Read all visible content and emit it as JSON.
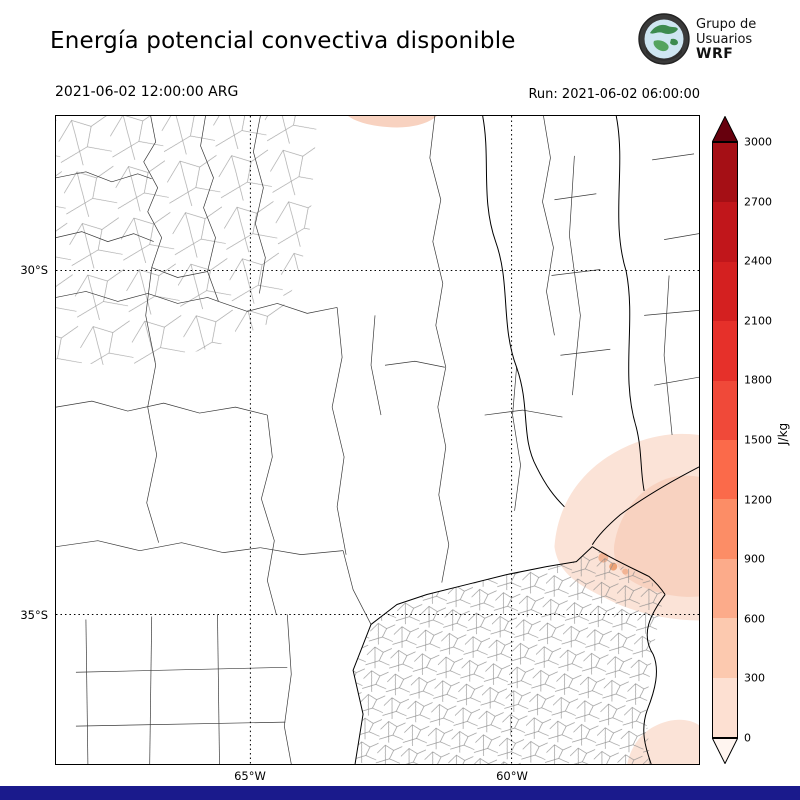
{
  "header": {
    "title": "Energía potencial convectiva disponible",
    "valid_time": "2021-06-02 12:00:00 ARG",
    "run_label": "Run: 2021-06-02 06:00:00"
  },
  "logo": {
    "line1": "Grupo de",
    "line2": "Usuarios",
    "line3": "WRF"
  },
  "map": {
    "lat_ticks": [
      "30°S",
      "35°S"
    ],
    "lon_ticks": [
      "65°W",
      "60°W"
    ]
  },
  "colorbar": {
    "unit": "J/kg",
    "ticks": [
      3000,
      2700,
      2400,
      2100,
      1800,
      1500,
      1200,
      900,
      600,
      300,
      0
    ],
    "segment_colors": [
      "#a50f15",
      "#c1161b",
      "#d42020",
      "#e6302a",
      "#f04939",
      "#fb6a4a",
      "#fc8d66",
      "#fcab8a",
      "#fcc9af",
      "#fde0d2"
    ],
    "over_color": "#67000d",
    "under_color": "#fff5f0"
  },
  "footer_bar_color": "#1a1a8c",
  "chart_data": {
    "type": "heatmap",
    "title": "Energía potencial convectiva disponible",
    "variable": "CAPE",
    "unit": "J/kg",
    "valid_time": "2021-06-02 12:00:00 ARG",
    "run": "2021-06-02 06:00:00",
    "colorbar_ticks": [
      0,
      300,
      600,
      900,
      1200,
      1500,
      1800,
      2100,
      2400,
      2700,
      3000
    ],
    "colorbar_range": [
      0,
      3000
    ],
    "lat_gridlines": [
      "30°S",
      "35°S"
    ],
    "lon_gridlines": [
      "65°W",
      "60°W"
    ],
    "regions": [
      {
        "area": "most of the mapped domain (central/northern Argentina)",
        "value_jkg": 0
      },
      {
        "area": "Río de la Plata, southern Entre Ríos and NE Buenos Aires",
        "value_jkg": "0-300"
      },
      {
        "area": "local maxima near the Río de la Plata estuary / Buenos Aires coast",
        "value_jkg": "300-900"
      },
      {
        "area": "small patch at northern map edge",
        "value_jkg": "0-300"
      },
      {
        "area": "southeastern Atlantic corner of the map",
        "value_jkg": "0-300"
      }
    ]
  }
}
